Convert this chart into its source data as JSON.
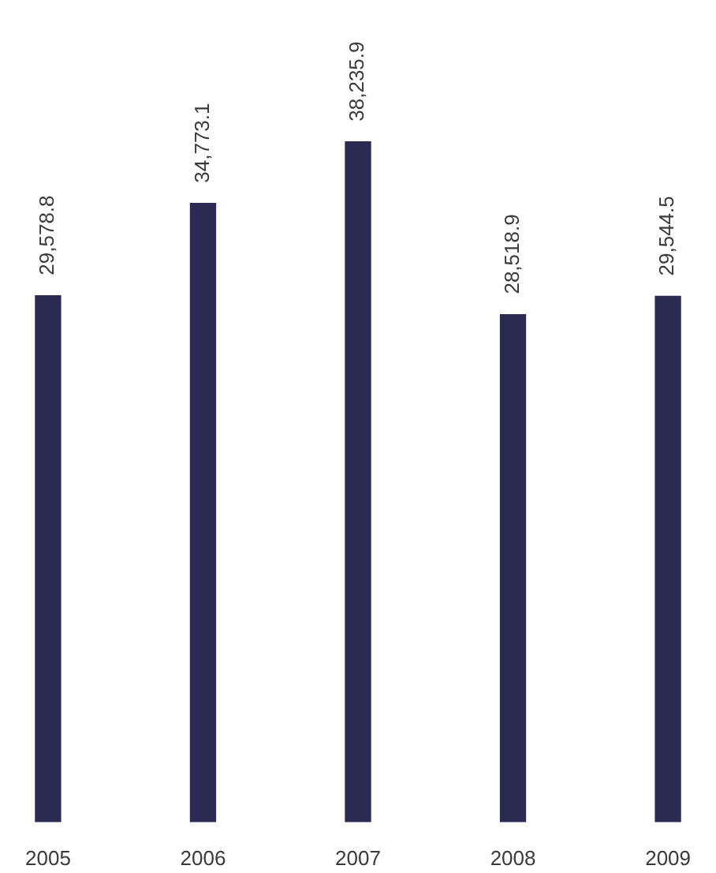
{
  "chart_data": {
    "type": "bar",
    "categories": [
      "2005",
      "2006",
      "2007",
      "2008",
      "2009"
    ],
    "values": [
      29578.8,
      34773.1,
      38235.9,
      28518.9,
      29544.5
    ],
    "value_labels": [
      "29,578.8",
      "34,773.1",
      "38,235.9",
      "28,518.9",
      "29,544.5"
    ],
    "color": "#2a2a52",
    "tick_labels": "x"
  }
}
